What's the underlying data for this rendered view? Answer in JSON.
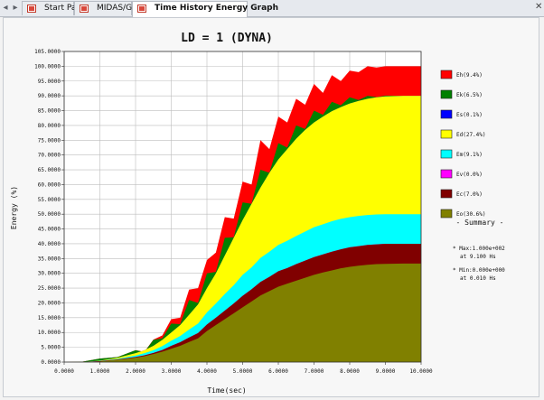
{
  "tabs": [
    {
      "label": "Start Page",
      "active": false
    },
    {
      "label": "MIDAS/Gen",
      "active": false
    },
    {
      "label": "Time History Energy Graph",
      "active": true
    }
  ],
  "chart_data": {
    "type": "area",
    "title": "LD = 1 (DYNA)",
    "xlabel": "Time(sec)",
    "ylabel": "Energy (%)",
    "xlim": [
      0,
      10
    ],
    "ylim": [
      0,
      105
    ],
    "x_ticks": [
      "0.0000",
      "1.0000",
      "2.0000",
      "3.0000",
      "4.0000",
      "5.0000",
      "6.0000",
      "7.0000",
      "8.0000",
      "9.0000",
      "10.0000"
    ],
    "y_ticks": [
      "0.0000",
      "5.0000",
      "10.0000",
      "15.0000",
      "20.0000",
      "25.0000",
      "30.0000",
      "35.0000",
      "40.0000",
      "45.0000",
      "50.0000",
      "55.0000",
      "60.0000",
      "65.0000",
      "70.0000",
      "75.0000",
      "80.0000",
      "85.0000",
      "90.0000",
      "95.0000",
      "100.0000",
      "105.0000"
    ],
    "grid": true,
    "legend_position": "right",
    "x": [
      0,
      0.5,
      1,
      1.5,
      2,
      2.25,
      2.5,
      2.75,
      3,
      3.25,
      3.5,
      3.75,
      4,
      4.25,
      4.5,
      4.75,
      5,
      5.25,
      5.5,
      5.75,
      6,
      6.25,
      6.5,
      6.75,
      7,
      7.25,
      7.5,
      7.75,
      8,
      8.25,
      8.5,
      8.75,
      9,
      9.5,
      10
    ],
    "cumulative_levels": [
      {
        "name": "Eo(30.6%)",
        "color": "#808000",
        "values": [
          0,
          0,
          0.2,
          0.8,
          1.5,
          2,
          2.7,
          3.5,
          4.5,
          5.5,
          6.8,
          8,
          10.5,
          12.5,
          14.5,
          16.5,
          18.5,
          20.5,
          22.5,
          24,
          25.5,
          26.5,
          27.5,
          28.5,
          29.5,
          30.3,
          31,
          31.7,
          32.2,
          32.6,
          32.9,
          33.1,
          33.2,
          33.3,
          33.3
        ]
      },
      {
        "name": "Ec(7.0%)",
        "color": "#800000",
        "values": [
          0,
          0,
          0.3,
          0.9,
          1.7,
          2.3,
          3.1,
          4.1,
          5.5,
          6.7,
          8.3,
          9.8,
          12.7,
          15,
          17.4,
          19.8,
          22.4,
          24.6,
          27.1,
          28.8,
          30.7,
          31.8,
          33.1,
          34.3,
          35.5,
          36.4,
          37.3,
          38.1,
          38.8,
          39.2,
          39.6,
          39.8,
          40,
          40,
          40
        ]
      },
      {
        "name": "Ev(0.0%)",
        "color": "#ff00ff",
        "values": [
          0,
          0,
          0.3,
          0.9,
          1.7,
          2.3,
          3.1,
          4.1,
          5.5,
          6.7,
          8.3,
          9.8,
          12.7,
          15,
          17.4,
          19.8,
          22.4,
          24.6,
          27.1,
          28.8,
          30.7,
          31.8,
          33.1,
          34.3,
          35.5,
          36.4,
          37.3,
          38.1,
          38.8,
          39.2,
          39.6,
          39.8,
          40,
          40,
          40
        ]
      },
      {
        "name": "Em(9.1%)",
        "color": "#00ffff",
        "values": [
          0,
          0,
          0.4,
          1.1,
          2.2,
          3,
          4,
          5.4,
          7.2,
          8.8,
          11,
          13,
          16.8,
          19.8,
          23,
          26,
          29.5,
          32,
          35.2,
          37.3,
          39.6,
          41,
          42.6,
          44.1,
          45.6,
          46.6,
          47.6,
          48.4,
          49,
          49.4,
          49.7,
          49.9,
          50,
          50,
          50
        ]
      },
      {
        "name": "Ed(27.4%)",
        "color": "#ffff00",
        "values": [
          0,
          0,
          0.5,
          1.5,
          3,
          4,
          5.5,
          7.5,
          10,
          12.5,
          16,
          19.5,
          25,
          30,
          36,
          42,
          48,
          53.5,
          59,
          64,
          68.5,
          72,
          75.5,
          78.5,
          81,
          83,
          84.8,
          86.2,
          87.4,
          88.3,
          89,
          89.5,
          89.8,
          90,
          90
        ]
      },
      {
        "name": "Es(0.1%)",
        "color": "#0000ff",
        "values": [
          0,
          0,
          0.5,
          1.5,
          3,
          4,
          5.5,
          7.5,
          10,
          12.5,
          16,
          19.5,
          25,
          30,
          36,
          42,
          48,
          53.5,
          59,
          64,
          68.5,
          72,
          75.5,
          78.5,
          81,
          83,
          84.8,
          86.2,
          87.4,
          88.3,
          89,
          89.5,
          89.8,
          90,
          90
        ]
      },
      {
        "name": "Ek(6.5%)",
        "color": "#008000",
        "values": [
          0,
          0.1,
          1.2,
          1.7,
          4,
          3.4,
          7.5,
          8,
          13,
          12.8,
          21,
          20,
          30,
          30.5,
          42,
          42.2,
          54,
          53.5,
          65,
          64,
          74,
          72.5,
          80,
          78.8,
          85,
          83.6,
          88,
          86.8,
          89.5,
          88.6,
          90,
          89.6,
          90.1,
          90,
          90
        ]
      },
      {
        "name": "Eh(9.4%)",
        "color": "#ff0000",
        "values": [
          0,
          0.1,
          1.2,
          1.7,
          4,
          3.5,
          7.6,
          9,
          14.5,
          15,
          24.5,
          25,
          34.5,
          37,
          49,
          48.5,
          61,
          60,
          75,
          72,
          83,
          81,
          89,
          87,
          94,
          91,
          97,
          95,
          98.5,
          98,
          100,
          99.6,
          100,
          100,
          100
        ]
      }
    ],
    "legend": [
      {
        "name": "Eh(9.4%)",
        "color": "#ff0000"
      },
      {
        "name": "Ek(6.5%)",
        "color": "#008000"
      },
      {
        "name": "Es(0.1%)",
        "color": "#0000ff"
      },
      {
        "name": "Ed(27.4%)",
        "color": "#ffff00"
      },
      {
        "name": "Em(9.1%)",
        "color": "#00ffff"
      },
      {
        "name": "Ev(0.0%)",
        "color": "#ff00ff"
      },
      {
        "name": "Ec(7.0%)",
        "color": "#800000"
      },
      {
        "name": "Eo(30.6%)",
        "color": "#808000"
      }
    ],
    "summary": {
      "heading": "- Summary -",
      "max_line1": "* Max:1.000e+002",
      "max_line2": "at  9.100 Hs",
      "min_line1": "* Min:0.000e+000",
      "min_line2": "at  0.010 Hs"
    }
  }
}
